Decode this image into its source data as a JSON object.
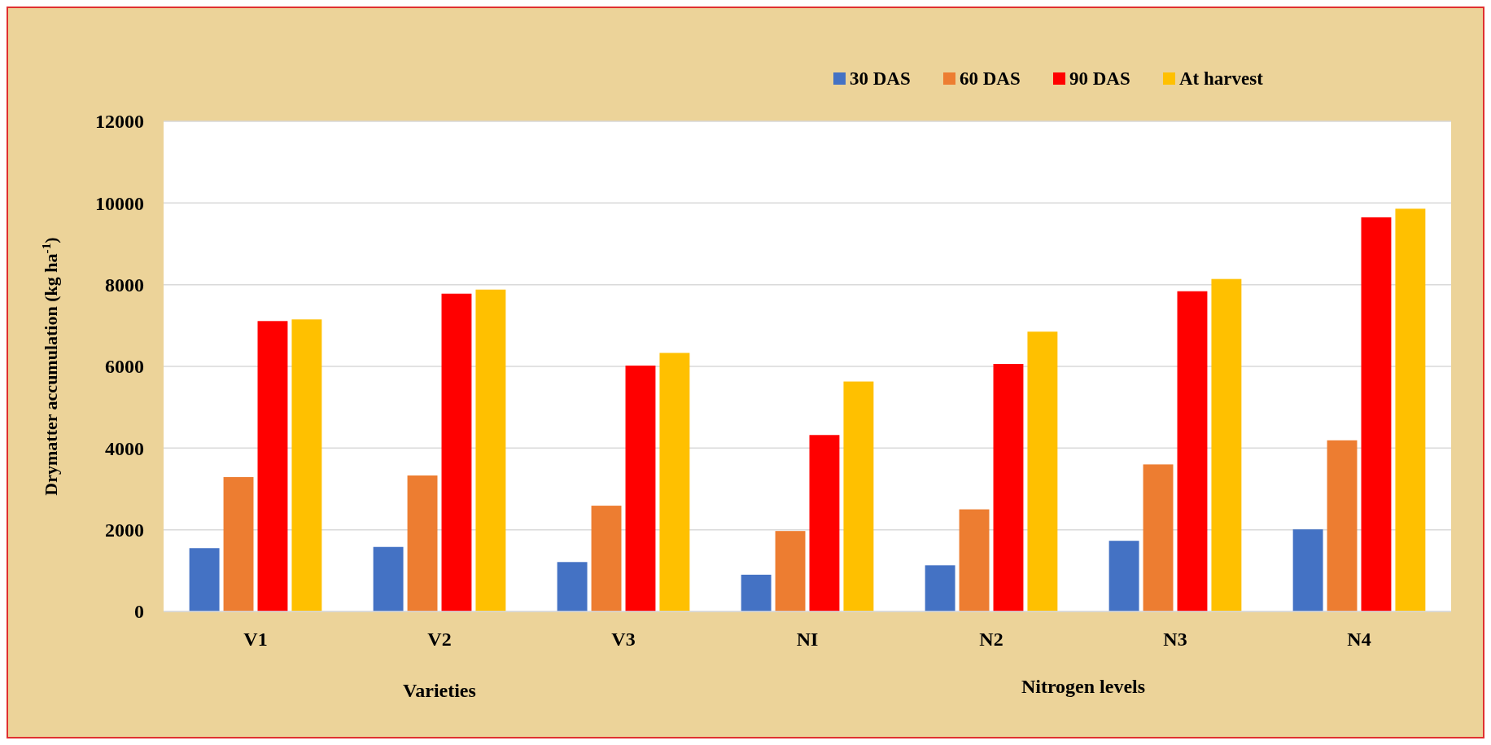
{
  "chart_data": {
    "type": "bar",
    "ylabel": "Drymatter accumulation (kg ha$^{-1}$)",
    "categories": [
      "V1",
      "V2",
      "V3",
      "NI",
      "N2",
      "N3",
      "N4"
    ],
    "series": [
      {
        "name": "30 DAS",
        "color": "#4472c4",
        "values": [
          1550,
          1580,
          1210,
          900,
          1130,
          1730,
          2010
        ]
      },
      {
        "name": "60 DAS",
        "color": "#ed7d31",
        "values": [
          3290,
          3330,
          2590,
          1970,
          2500,
          3600,
          4190
        ]
      },
      {
        "name": "90 DAS",
        "color": "#ff0000",
        "values": [
          7110,
          7780,
          6020,
          4320,
          6060,
          7840,
          9650
        ]
      },
      {
        "name": "At harvest",
        "color": "#ffc000",
        "values": [
          7150,
          7880,
          6330,
          5630,
          6850,
          8140,
          9860
        ]
      }
    ],
    "ylim": [
      0,
      12000
    ],
    "yticks": [
      0,
      2000,
      4000,
      6000,
      8000,
      10000,
      12000
    ],
    "grid": "y",
    "legend": "top right",
    "annotations": [
      "Varieties",
      "Nitrogen levels"
    ]
  }
}
